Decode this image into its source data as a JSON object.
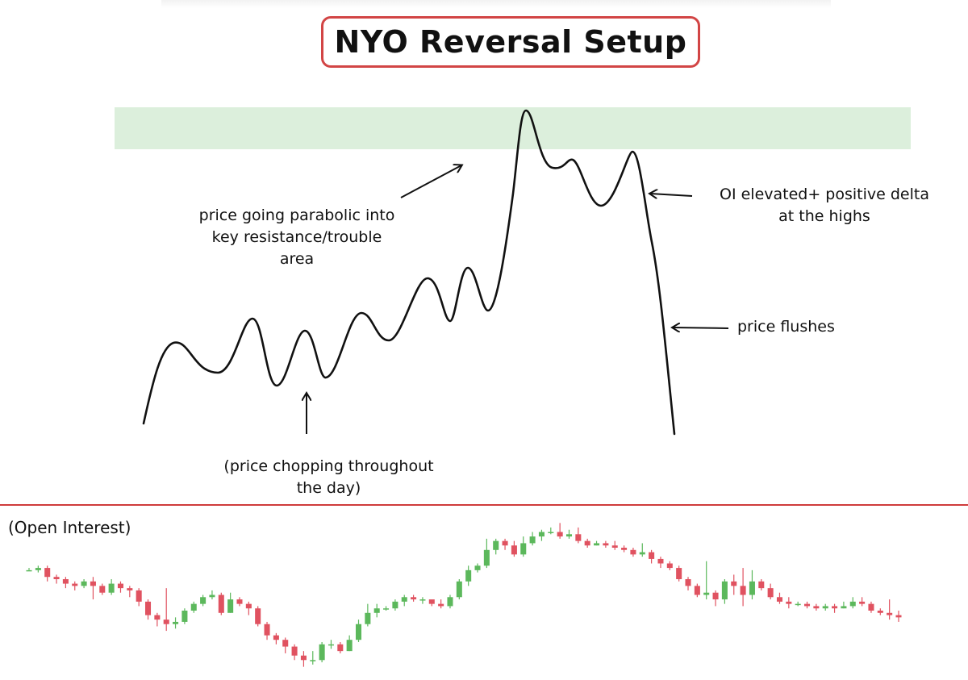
{
  "title": "NYO Reversal Setup",
  "annotations": {
    "parabolic_line1": "price going parabolic into",
    "parabolic_line2": "key resistance/trouble",
    "parabolic_line3": "area",
    "oi_line1": "OI elevated+ positive delta",
    "oi_line2": "at the highs",
    "flush": "price flushes",
    "chop_line1": "(price chopping throughout",
    "chop_line2": "the day)"
  },
  "bottom_panel": {
    "label": "(Open Interest)"
  },
  "colors": {
    "title_border": "#d24545",
    "resistance_zone": "#dcefdc",
    "divider": "#cf3b3b",
    "candle_up": "#5cb85c",
    "candle_down": "#e05260"
  },
  "chart_data": {
    "type": "candlestick",
    "series_name": "",
    "note": "approximate relative open-interest values (unlabeled axis)",
    "ohlc": [
      [
        71,
        71,
        72,
        71
      ],
      [
        71,
        72,
        73,
        70
      ],
      [
        72,
        68,
        73,
        66
      ],
      [
        68,
        67,
        69,
        65
      ],
      [
        67,
        65,
        68,
        63
      ],
      [
        65,
        64,
        66,
        62
      ],
      [
        64,
        66,
        67,
        63
      ],
      [
        66,
        64,
        68,
        58
      ],
      [
        64,
        61,
        65,
        60
      ],
      [
        61,
        65,
        67,
        60
      ],
      [
        65,
        63,
        66,
        61
      ],
      [
        63,
        62,
        64,
        59
      ],
      [
        62,
        57,
        63,
        55
      ],
      [
        57,
        51,
        58,
        49
      ],
      [
        51,
        49,
        52,
        46
      ],
      [
        49,
        47,
        63,
        44
      ],
      [
        47,
        48,
        50,
        45
      ],
      [
        48,
        53,
        54,
        47
      ],
      [
        53,
        56,
        57,
        52
      ],
      [
        56,
        59,
        60,
        55
      ],
      [
        59,
        60,
        62,
        58
      ],
      [
        60,
        52,
        61,
        51
      ],
      [
        52,
        58,
        61,
        52
      ],
      [
        58,
        56,
        59,
        55
      ],
      [
        56,
        54,
        57,
        51
      ],
      [
        54,
        47,
        55,
        46
      ],
      [
        47,
        42,
        48,
        40
      ],
      [
        42,
        40,
        43,
        38
      ],
      [
        40,
        37,
        41,
        34
      ],
      [
        37,
        33,
        38,
        31
      ],
      [
        33,
        31,
        35,
        28
      ],
      [
        31,
        31,
        35,
        29
      ],
      [
        31,
        38,
        39,
        30
      ],
      [
        38,
        38,
        40,
        36
      ],
      [
        38,
        35,
        39,
        34
      ],
      [
        35,
        40,
        42,
        35
      ],
      [
        40,
        47,
        49,
        39
      ],
      [
        47,
        52,
        56,
        46
      ],
      [
        52,
        54,
        56,
        50
      ],
      [
        54,
        54,
        55,
        53
      ],
      [
        54,
        57,
        58,
        53
      ],
      [
        57,
        59,
        60,
        55
      ],
      [
        59,
        58,
        60,
        57
      ],
      [
        58,
        58,
        59,
        56
      ],
      [
        58,
        56,
        57,
        55
      ],
      [
        56,
        55,
        58,
        54
      ],
      [
        55,
        59,
        60,
        54
      ],
      [
        59,
        66,
        67,
        58
      ],
      [
        66,
        71,
        73,
        64
      ],
      [
        71,
        73,
        74,
        70
      ],
      [
        73,
        80,
        85,
        72
      ],
      [
        80,
        84,
        85,
        78
      ],
      [
        84,
        82,
        85,
        80
      ],
      [
        82,
        78,
        84,
        77
      ],
      [
        78,
        83,
        86,
        77
      ],
      [
        83,
        86,
        88,
        82
      ],
      [
        86,
        88,
        89,
        84
      ],
      [
        88,
        88,
        90,
        87
      ],
      [
        88,
        86,
        92,
        85
      ],
      [
        86,
        87,
        89,
        85
      ],
      [
        87,
        84,
        90,
        83
      ],
      [
        84,
        82,
        85,
        81
      ],
      [
        82,
        83,
        84,
        82
      ],
      [
        83,
        82,
        84,
        81
      ],
      [
        82,
        81,
        84,
        80
      ],
      [
        81,
        80,
        82,
        79
      ],
      [
        80,
        78,
        81,
        77
      ],
      [
        78,
        79,
        83,
        77
      ],
      [
        79,
        76,
        80,
        74
      ],
      [
        76,
        74,
        77,
        72
      ],
      [
        74,
        72,
        75,
        71
      ],
      [
        72,
        67,
        73,
        66
      ],
      [
        67,
        64,
        68,
        62
      ],
      [
        64,
        60,
        65,
        59
      ],
      [
        60,
        61,
        75,
        58
      ],
      [
        61,
        58,
        62,
        55
      ],
      [
        58,
        66,
        67,
        56
      ],
      [
        66,
        64,
        69,
        60
      ],
      [
        64,
        60,
        72,
        55
      ],
      [
        60,
        66,
        71,
        58
      ],
      [
        66,
        63,
        67,
        62
      ],
      [
        63,
        59,
        65,
        58
      ],
      [
        59,
        57,
        61,
        56
      ],
      [
        57,
        56,
        59,
        54
      ],
      [
        56,
        56,
        57,
        55
      ],
      [
        56,
        55,
        57,
        54
      ],
      [
        55,
        54,
        56,
        53
      ],
      [
        54,
        55,
        56,
        53
      ],
      [
        55,
        54,
        56,
        52
      ],
      [
        54,
        55,
        57,
        54
      ],
      [
        55,
        57,
        59,
        54
      ],
      [
        57,
        56,
        59,
        55
      ],
      [
        56,
        53,
        57,
        52
      ],
      [
        53,
        52,
        54,
        51
      ],
      [
        52,
        51,
        58,
        49
      ],
      [
        51,
        50,
        53,
        48
      ]
    ]
  }
}
